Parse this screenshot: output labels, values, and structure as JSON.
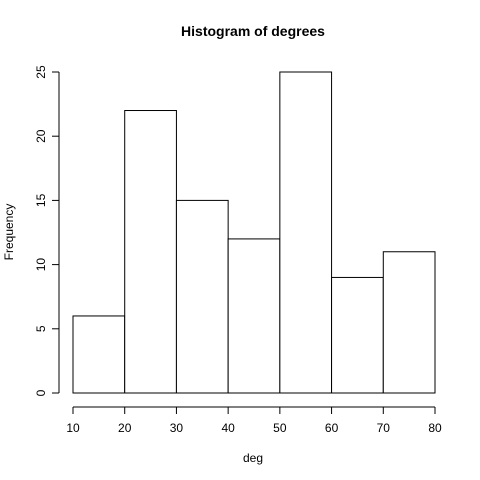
{
  "chart_data": {
    "type": "bar",
    "title": "Histogram of degrees",
    "xlabel": "deg",
    "ylabel": "Frequency",
    "bins": [
      {
        "start": 10,
        "end": 20,
        "count": 6
      },
      {
        "start": 20,
        "end": 30,
        "count": 22
      },
      {
        "start": 30,
        "end": 40,
        "count": 15
      },
      {
        "start": 40,
        "end": 50,
        "count": 12
      },
      {
        "start": 50,
        "end": 60,
        "count": 25
      },
      {
        "start": 60,
        "end": 70,
        "count": 9
      },
      {
        "start": 70,
        "end": 80,
        "count": 11
      }
    ],
    "xlim": [
      10,
      80
    ],
    "ylim": [
      0,
      25
    ],
    "x_ticks": [
      10,
      20,
      30,
      40,
      50,
      60,
      70,
      80
    ],
    "y_ticks": [
      0,
      5,
      10,
      15,
      20,
      25
    ],
    "grid": false,
    "legend": "none"
  }
}
